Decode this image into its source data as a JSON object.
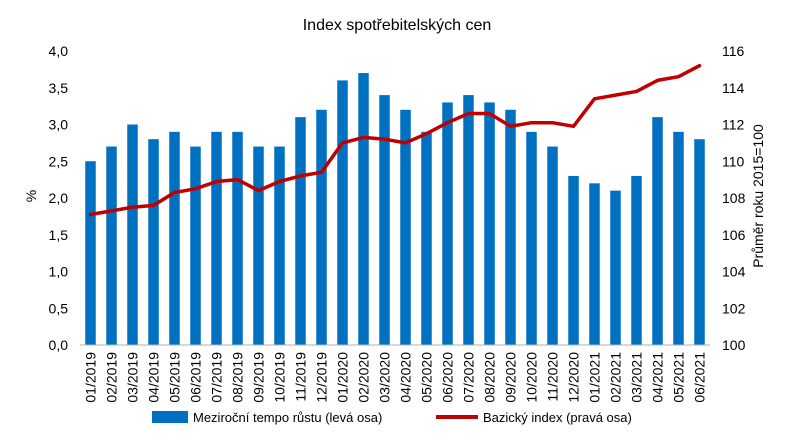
{
  "chart_data": {
    "type": "bar+line",
    "title": "Index spotřebitelských cen",
    "ylabel_left": "%",
    "ylabel_right": "Průměr roku 2015=100",
    "ylim_left": [
      0,
      4.0
    ],
    "ylim_right": [
      100,
      116
    ],
    "yticks_left": [
      "0,0",
      "0,5",
      "1,0",
      "1,5",
      "2,0",
      "2,5",
      "3,0",
      "3,5",
      "4,0"
    ],
    "yticks_right": [
      "100",
      "102",
      "104",
      "106",
      "108",
      "110",
      "112",
      "114",
      "116"
    ],
    "categories": [
      "01/2019",
      "02/2019",
      "03/2019",
      "04/2019",
      "05/2019",
      "06/2019",
      "07/2019",
      "08/2019",
      "09/2019",
      "10/2019",
      "11/2019",
      "12/2019",
      "01/2020",
      "02/2020",
      "03/2020",
      "04/2020",
      "05/2020",
      "06/2020",
      "07/2020",
      "08/2020",
      "09/2020",
      "10/2020",
      "11/2020",
      "12/2020",
      "01/2021",
      "02/2021",
      "03/2021",
      "04/2021",
      "05/2021",
      "06/2021"
    ],
    "series": [
      {
        "name": "Meziroční tempo růstu (levá osa)",
        "type": "bar",
        "axis": "left",
        "color": "#0070C0",
        "values": [
          2.5,
          2.7,
          3.0,
          2.8,
          2.9,
          2.7,
          2.9,
          2.9,
          2.7,
          2.7,
          3.1,
          3.2,
          3.6,
          3.7,
          3.4,
          3.2,
          2.9,
          3.3,
          3.4,
          3.3,
          3.2,
          2.9,
          2.7,
          2.3,
          2.2,
          2.1,
          2.3,
          3.1,
          2.9,
          2.8
        ]
      },
      {
        "name": "Bazický index (pravá osa)",
        "type": "line",
        "axis": "right",
        "color": "#C00000",
        "values": [
          107.1,
          107.3,
          107.5,
          107.6,
          108.3,
          108.5,
          108.9,
          109.0,
          108.4,
          108.9,
          109.2,
          109.4,
          111.0,
          111.3,
          111.2,
          111.0,
          111.5,
          112.1,
          112.6,
          112.6,
          111.9,
          112.1,
          112.1,
          111.9,
          113.4,
          113.6,
          113.8,
          114.4,
          114.6,
          115.2
        ]
      }
    ],
    "legend_position": "bottom",
    "grid": false
  }
}
